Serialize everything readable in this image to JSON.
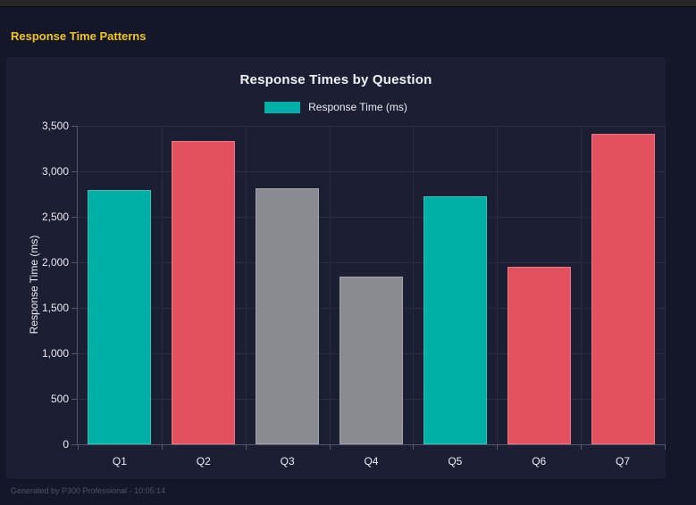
{
  "page": {
    "title": "Response Time Patterns",
    "footer": "Generated by P300 Professional - 10:05:14"
  },
  "colors": {
    "page_bg": "#14172a",
    "panel_bg": "#1c1f33",
    "topbar_bg": "#28282b",
    "page_title_yellow": "#f0c51c",
    "teal": "#00b0a6",
    "red": "#e4515e",
    "gray": "#8a8b91",
    "gridline": "#282d47",
    "axis_line": "#52576b",
    "axis_text": "#e9ebf2",
    "muted_text": "#4c5268"
  },
  "chart_data": {
    "type": "bar",
    "title": "Response Times by Question",
    "legend": [
      {
        "label": "Response Time (ms)",
        "color": "#00b0a6"
      }
    ],
    "legend_position": "top",
    "categories": [
      "Q1",
      "Q2",
      "Q3",
      "Q4",
      "Q5",
      "Q6",
      "Q7"
    ],
    "values": [
      2790,
      3330,
      2815,
      1840,
      2725,
      1955,
      3410
    ],
    "bar_colors": [
      "#00b0a6",
      "#e4515e",
      "#8a8b91",
      "#8a8b91",
      "#00b0a6",
      "#e4515e",
      "#e4515e"
    ],
    "xlabel": "",
    "ylabel": "Response Time (ms)",
    "ylim": [
      0,
      3500
    ],
    "ytick_step": 500,
    "grid": true
  }
}
